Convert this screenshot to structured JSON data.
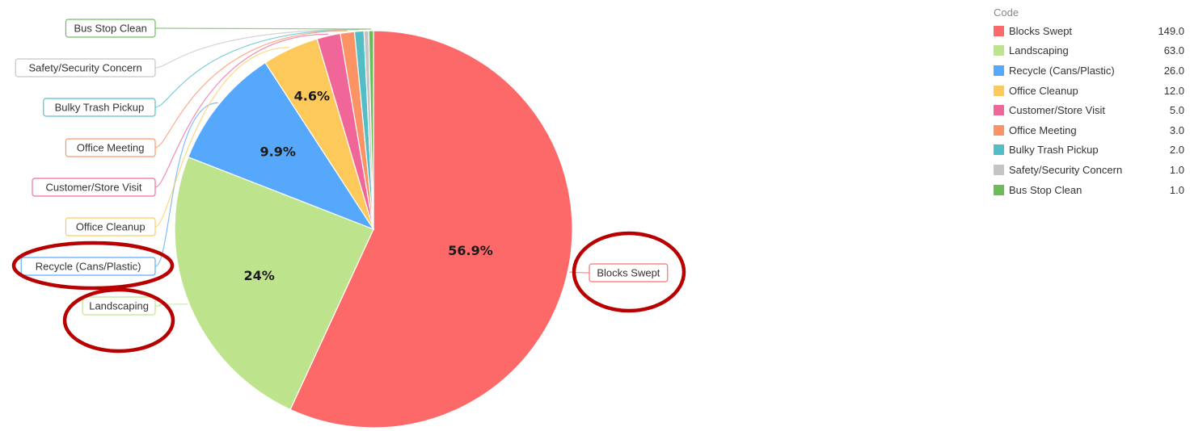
{
  "chart_data": {
    "type": "pie",
    "legend_title": "Code",
    "legend_position": "top-right",
    "categories": [
      "Blocks Swept",
      "Landscaping",
      "Recycle (Cans/Plastic)",
      "Office Cleanup",
      "Customer/Store Visit",
      "Office Meeting",
      "Bulky Trash Pickup",
      "Safety/Security Concern",
      "Bus Stop Clean"
    ],
    "values": [
      149.0,
      63.0,
      26.0,
      12.0,
      5.0,
      3.0,
      2.0,
      1.0,
      1.0
    ],
    "value_labels": [
      "149.0",
      "63.0",
      "26.0",
      "12.0",
      "5.0",
      "3.0",
      "2.0",
      "1.0",
      "1.0"
    ],
    "slice_labels": [
      "56.9%",
      "24%",
      "9.9%",
      "4.6%",
      "",
      "",
      "",
      "",
      ""
    ],
    "colors": [
      "#fd6868",
      "#bde38d",
      "#55a8fb",
      "#fdc95a",
      "#f06699",
      "#fb9365",
      "#52bdc4",
      "#c4c4c4",
      "#6bbb57"
    ],
    "annotation_color": "#b80000"
  }
}
